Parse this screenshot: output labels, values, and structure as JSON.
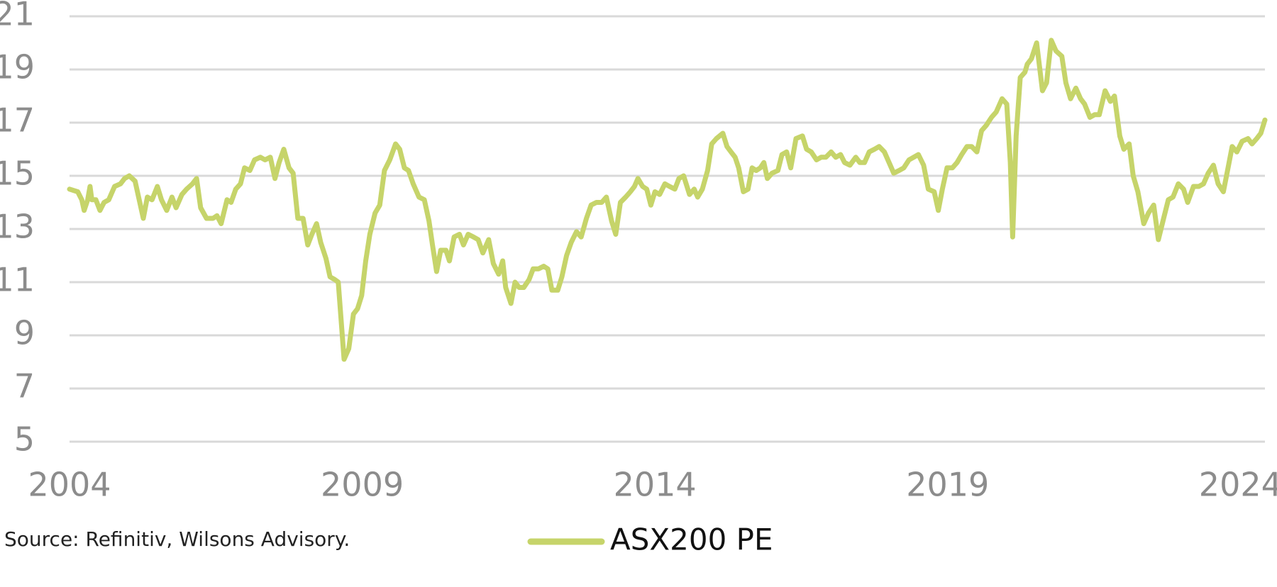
{
  "chart_data": {
    "type": "line",
    "source": "Source: Refinitiv, Wilsons Advisory.",
    "x": [
      2004.0,
      2004.14,
      2004.21,
      2004.25,
      2004.31,
      2004.35,
      2004.38,
      2004.45,
      2004.52,
      2004.59,
      2004.67,
      2004.77,
      2004.87,
      2004.94,
      2005.02,
      2005.12,
      2005.19,
      2005.26,
      2005.33,
      2005.41,
      2005.5,
      2005.57,
      2005.66,
      2005.75,
      2005.82,
      2005.92,
      2006.0,
      2006.1,
      2006.17,
      2006.24,
      2006.34,
      2006.45,
      2006.52,
      2006.59,
      2006.69,
      2006.76,
      2006.84,
      2006.92,
      2006.99,
      2007.08,
      2007.16,
      2007.26,
      2007.34,
      2007.43,
      2007.51,
      2007.58,
      2007.66,
      2007.75,
      2007.82,
      2007.9,
      2007.99,
      2008.07,
      2008.14,
      2008.22,
      2008.29,
      2008.38,
      2008.45,
      2008.53,
      2008.59,
      2008.69,
      2008.77,
      2008.85,
      2008.92,
      2008.99,
      2009.06,
      2009.13,
      2009.22,
      2009.3,
      2009.38,
      2009.47,
      2009.57,
      2009.64,
      2009.72,
      2009.79,
      2009.87,
      2009.97,
      2010.06,
      2010.14,
      2010.2,
      2010.27,
      2010.34,
      2010.43,
      2010.49,
      2010.57,
      2010.66,
      2010.73,
      2010.81,
      2010.9,
      2010.98,
      2011.06,
      2011.16,
      2011.24,
      2011.33,
      2011.4,
      2011.45,
      2011.54,
      2011.61,
      2011.68,
      2011.76,
      2011.85,
      2011.92,
      2012.01,
      2012.1,
      2012.17,
      2012.24,
      2012.34,
      2012.41,
      2012.49,
      2012.57,
      2012.66,
      2012.74,
      2012.83,
      2012.91,
      2013.0,
      2013.09,
      2013.17,
      2013.26,
      2013.33,
      2013.41,
      2013.5,
      2013.58,
      2013.65,
      2013.71,
      2013.79,
      2013.86,
      2013.93,
      2014.0,
      2014.08,
      2014.17,
      2014.25,
      2014.34,
      2014.41,
      2014.49,
      2014.59,
      2014.67,
      2014.73,
      2014.81,
      2014.9,
      2014.97,
      2015.05,
      2015.16,
      2015.23,
      2015.3,
      2015.37,
      2015.43,
      2015.51,
      2015.59,
      2015.66,
      2015.73,
      2015.8,
      2015.86,
      2015.92,
      2016.0,
      2016.1,
      2016.17,
      2016.25,
      2016.32,
      2016.41,
      2016.52,
      2016.59,
      2016.67,
      2016.76,
      2016.84,
      2016.92,
      2017.01,
      2017.09,
      2017.17,
      2017.24,
      2017.33,
      2017.43,
      2017.5,
      2017.58,
      2017.66,
      2017.75,
      2017.83,
      2017.92,
      2018.0,
      2018.08,
      2018.17,
      2018.25,
      2018.34,
      2018.42,
      2018.5,
      2018.59,
      2018.67,
      2018.77,
      2018.84,
      2018.91,
      2018.99,
      2019.08,
      2019.16,
      2019.24,
      2019.33,
      2019.41,
      2019.5,
      2019.58,
      2019.66,
      2019.75,
      2019.83,
      2019.93,
      2020.01,
      2020.07,
      2020.11,
      2020.17,
      2020.24,
      2020.32,
      2020.36,
      2020.43,
      2020.52,
      2020.62,
      2020.69,
      2020.77,
      2020.85,
      2020.95,
      2021.02,
      2021.1,
      2021.19,
      2021.27,
      2021.34,
      2021.43,
      2021.51,
      2021.59,
      2021.69,
      2021.78,
      2021.85,
      2021.94,
      2022.01,
      2022.1,
      2022.17,
      2022.25,
      2022.35,
      2022.43,
      2022.52,
      2022.6,
      2022.69,
      2022.77,
      2022.85,
      2022.94,
      2023.03,
      2023.1,
      2023.2,
      2023.29,
      2023.37,
      2023.45,
      2023.54,
      2023.62,
      2023.71,
      2023.79,
      2023.86,
      2023.94,
      2024.03,
      2024.13,
      2024.2,
      2024.28,
      2024.35,
      2024.42
    ],
    "series": [
      {
        "name": "ASX200 PE",
        "color": "#c6d46a",
        "values": [
          14.5,
          14.4,
          14.1,
          13.7,
          14.1,
          14.6,
          14.1,
          14.1,
          13.7,
          14.0,
          14.1,
          14.6,
          14.7,
          14.9,
          15.0,
          14.8,
          14.1,
          13.4,
          14.2,
          14.1,
          14.6,
          14.1,
          13.7,
          14.2,
          13.8,
          14.3,
          14.5,
          14.7,
          14.9,
          13.8,
          13.4,
          13.4,
          13.5,
          13.2,
          14.1,
          14.0,
          14.5,
          14.7,
          15.3,
          15.2,
          15.6,
          15.7,
          15.6,
          15.7,
          14.9,
          15.5,
          16.0,
          15.3,
          15.1,
          13.4,
          13.4,
          12.4,
          12.8,
          13.2,
          12.5,
          11.9,
          11.2,
          11.1,
          11.0,
          8.1,
          8.5,
          9.8,
          10.0,
          10.5,
          11.8,
          12.8,
          13.6,
          13.9,
          15.2,
          15.6,
          16.2,
          16.0,
          15.3,
          15.2,
          14.7,
          14.2,
          14.1,
          13.3,
          12.4,
          11.4,
          12.2,
          12.2,
          11.8,
          12.7,
          12.8,
          12.4,
          12.8,
          12.7,
          12.6,
          12.1,
          12.6,
          11.7,
          11.3,
          11.8,
          10.8,
          10.2,
          11.0,
          10.8,
          10.8,
          11.1,
          11.5,
          11.5,
          11.6,
          11.5,
          10.7,
          10.7,
          11.2,
          12.0,
          12.5,
          12.9,
          12.7,
          13.4,
          13.9,
          14.0,
          14.0,
          14.2,
          13.3,
          12.8,
          14.0,
          14.2,
          14.4,
          14.6,
          14.9,
          14.6,
          14.5,
          13.9,
          14.4,
          14.3,
          14.7,
          14.6,
          14.5,
          14.9,
          15.0,
          14.3,
          14.5,
          14.2,
          14.5,
          15.2,
          16.2,
          16.4,
          16.6,
          16.1,
          15.9,
          15.7,
          15.3,
          14.4,
          14.5,
          15.3,
          15.2,
          15.3,
          15.5,
          14.9,
          15.1,
          15.2,
          15.8,
          15.9,
          15.3,
          16.4,
          16.5,
          16.0,
          15.9,
          15.6,
          15.7,
          15.7,
          15.9,
          15.7,
          15.8,
          15.5,
          15.4,
          15.7,
          15.5,
          15.5,
          15.9,
          16.0,
          16.1,
          15.9,
          15.5,
          15.1,
          15.2,
          15.3,
          15.6,
          15.7,
          15.8,
          15.4,
          14.5,
          14.4,
          13.7,
          14.5,
          15.3,
          15.3,
          15.5,
          15.8,
          16.1,
          16.1,
          15.9,
          16.7,
          16.9,
          17.2,
          17.4,
          17.9,
          17.7,
          15.5,
          12.7,
          16.5,
          18.7,
          18.9,
          19.2,
          19.4,
          20.0,
          18.2,
          18.5,
          20.1,
          19.7,
          19.5,
          18.5,
          17.9,
          18.3,
          17.9,
          17.7,
          17.2,
          17.3,
          17.3,
          18.2,
          17.8,
          18.0,
          16.5,
          16.0,
          16.2,
          15.0,
          14.4,
          13.2,
          13.6,
          13.9,
          12.6,
          13.4,
          14.1,
          14.2,
          14.7,
          14.5,
          14.0,
          14.6,
          14.6,
          14.7,
          15.1,
          15.4,
          14.7,
          14.4,
          15.3,
          16.1,
          15.9,
          16.3,
          16.4,
          16.2,
          16.4,
          16.6,
          17.1
        ]
      }
    ],
    "xlim": [
      2004,
      2024.42
    ],
    "xticks": [
      2004,
      2009,
      2014,
      2019,
      2024
    ],
    "ylim": [
      5,
      21
    ],
    "yticks": [
      5,
      7,
      9,
      11,
      13,
      15,
      17,
      19,
      21
    ],
    "grid": true
  }
}
